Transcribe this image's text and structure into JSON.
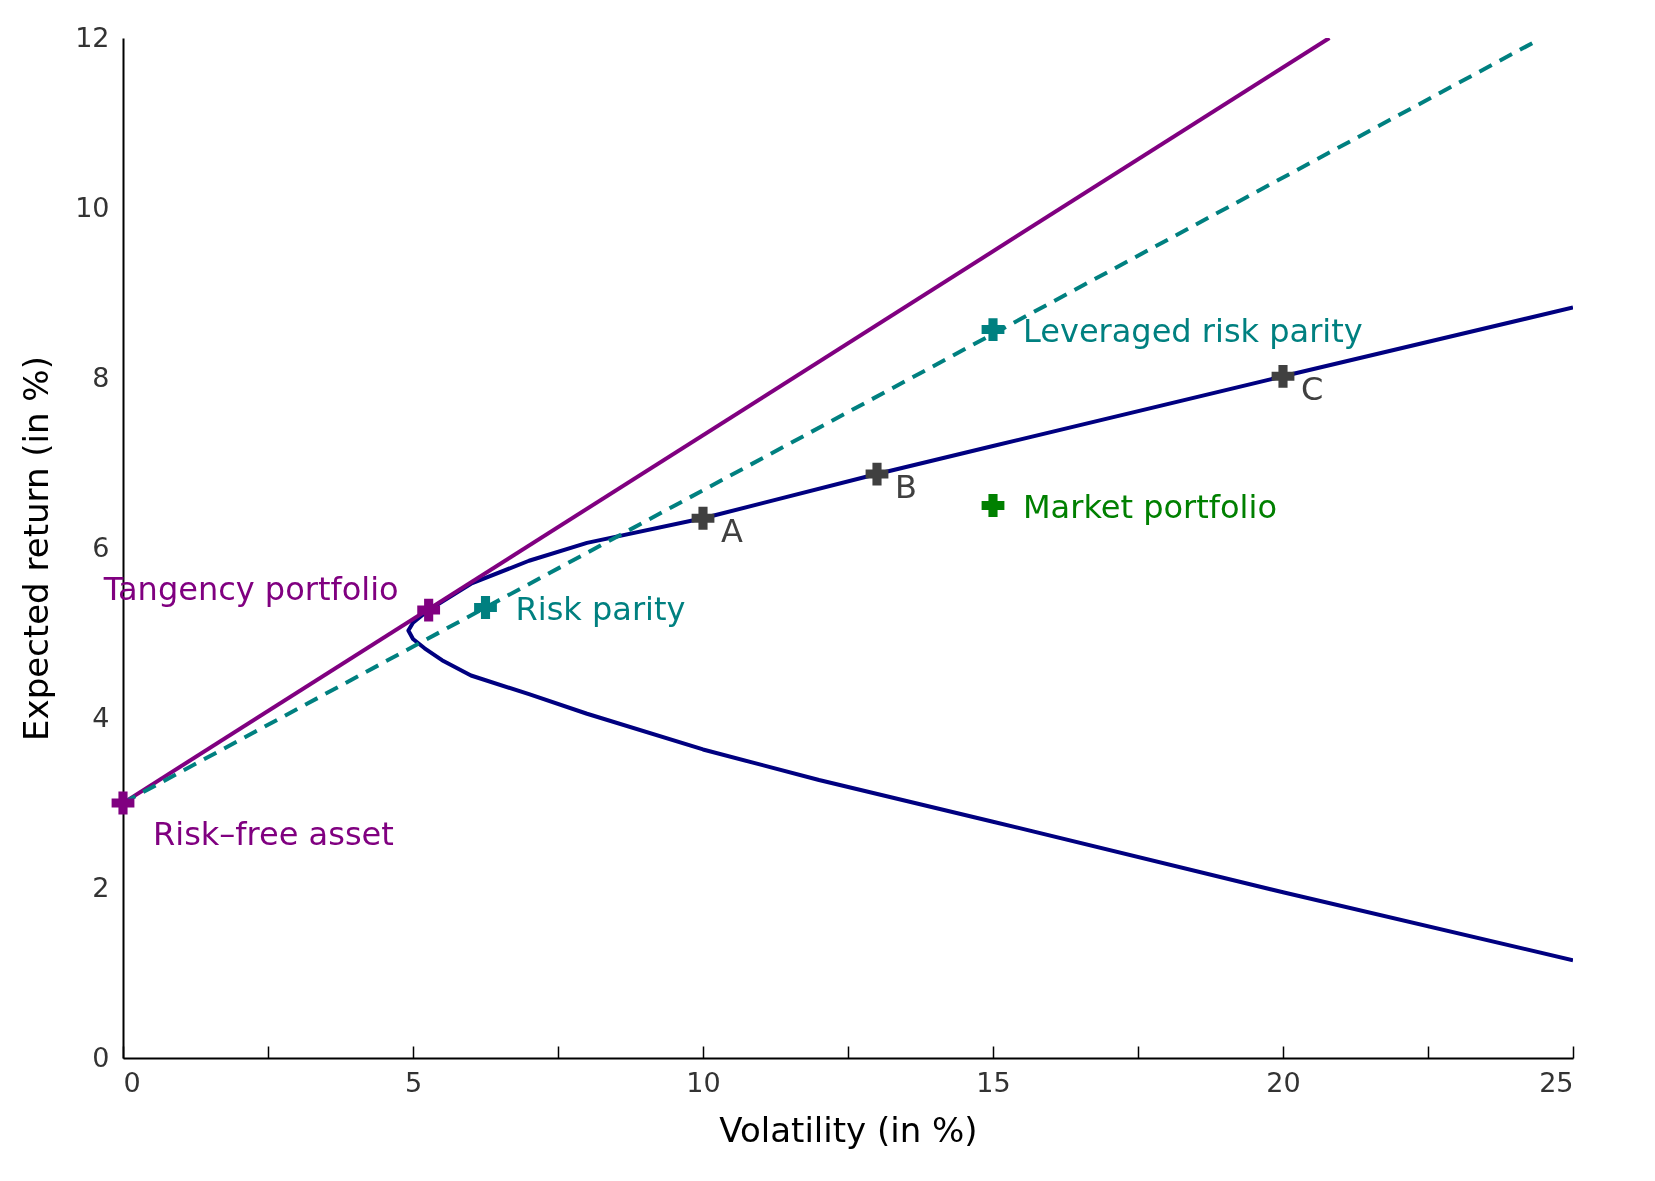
{
  "chart_data": {
    "type": "line",
    "xlabel": "Volatility (in %)",
    "ylabel": "Expected return (in %)",
    "xlim": [
      0,
      25
    ],
    "ylim": [
      0,
      12
    ],
    "xticks": [
      0,
      {
        "value": 2.5,
        "label": null
      },
      5,
      {
        "value": 7.5,
        "label": null
      },
      10,
      {
        "value": 12.5,
        "label": null
      },
      15,
      {
        "value": 17.5,
        "label": null
      },
      20,
      {
        "value": 22.5,
        "label": null
      },
      25
    ],
    "yticks": [
      0,
      2,
      4,
      6,
      8,
      10,
      12
    ],
    "grid": false,
    "series": [
      {
        "color": "#000080",
        "line_style": "solid",
        "x": [
          25,
          20,
          15,
          12,
          10,
          8,
          7,
          6,
          5.5,
          5.2,
          5.0,
          4.92,
          5.0,
          5.27,
          6,
          7,
          8,
          10,
          13,
          15,
          20,
          25
        ],
        "values": [
          1.15,
          1.95,
          2.78,
          3.27,
          3.63,
          4.05,
          4.28,
          4.5,
          4.68,
          4.82,
          4.93,
          5.03,
          5.12,
          5.27,
          5.58,
          5.85,
          6.06,
          6.35,
          6.87,
          7.2,
          8.02,
          8.83
        ]
      },
      {
        "color": "#800080",
        "line_style": "solid",
        "x": [
          0,
          20.8
        ],
        "values": [
          3,
          12
        ]
      },
      {
        "color": "#008080",
        "line_style": "dashed",
        "x": [
          0,
          24.3
        ],
        "values": [
          3,
          11.94
        ]
      },
      {
        "type": "scatter",
        "name": "Risk–free asset",
        "color": "#800080",
        "marker": "cross",
        "x": [
          0
        ],
        "values": [
          3
        ]
      },
      {
        "type": "scatter",
        "name": "Tangency portfolio",
        "color": "#800080",
        "marker": "cross",
        "x": [
          5.27
        ],
        "values": [
          5.27
        ]
      },
      {
        "type": "scatter",
        "name": "Risk parity",
        "color": "#008080",
        "marker": "cross",
        "x": [
          6.25
        ],
        "values": [
          5.3
        ]
      },
      {
        "type": "scatter",
        "name": "Leveraged risk parity",
        "color": "#008080",
        "marker": "cross",
        "x": [
          15
        ],
        "values": [
          8.57
        ]
      },
      {
        "type": "scatter",
        "name": "Market portfolio",
        "color": "#008000",
        "marker": "cross",
        "x": [
          15
        ],
        "values": [
          6.5
        ]
      },
      {
        "type": "scatter",
        "name": "A",
        "color": "#404040",
        "marker": "cross",
        "x": [
          10
        ],
        "values": [
          6.35
        ]
      },
      {
        "type": "scatter",
        "name": "B",
        "color": "#404040",
        "marker": "cross",
        "x": [
          13
        ],
        "values": [
          6.87
        ]
      },
      {
        "type": "scatter",
        "name": "C",
        "color": "#404040",
        "marker": "cross",
        "x": [
          20
        ],
        "values": [
          8.02
        ]
      }
    ]
  }
}
